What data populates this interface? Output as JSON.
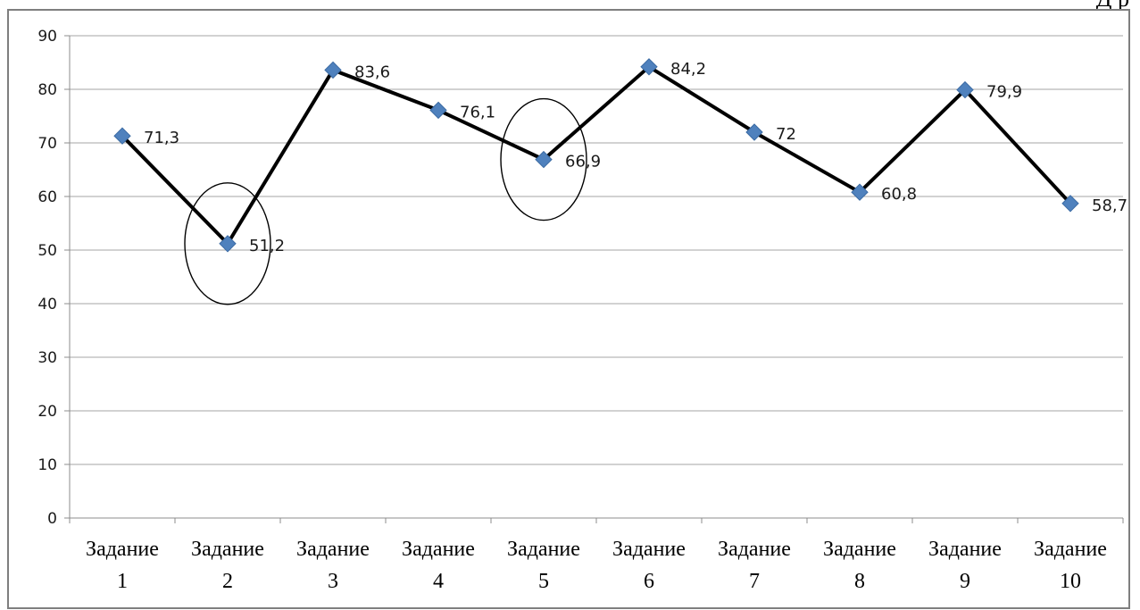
{
  "page": {
    "header_fragment": "Д    р"
  },
  "chart_data": {
    "type": "line",
    "title": "",
    "xlabel": "",
    "ylabel": "",
    "categories": [
      [
        "Задание",
        "1"
      ],
      [
        "Задание",
        "2"
      ],
      [
        "Задание",
        "3"
      ],
      [
        "Задание",
        "4"
      ],
      [
        "Задание",
        "5"
      ],
      [
        "Задание",
        "6"
      ],
      [
        "Задание",
        "7"
      ],
      [
        "Задание",
        "8"
      ],
      [
        "Задание",
        "9"
      ],
      [
        "Задание",
        "10"
      ]
    ],
    "series": [
      {
        "values": [
          71.3,
          51.2,
          83.6,
          76.1,
          66.9,
          84.2,
          72,
          60.8,
          79.9,
          58.7
        ],
        "labels": [
          "71,3",
          "51,2",
          "83,6",
          "76,1",
          "66,9",
          "84,2",
          "72",
          "60,8",
          "79,9",
          "58,7"
        ],
        "line_color": "#000000",
        "marker_color": "#4f81bd",
        "marker": "diamond"
      }
    ],
    "ylim": [
      0,
      90
    ],
    "yticks": [
      0,
      10,
      20,
      30,
      40,
      50,
      60,
      70,
      80,
      90
    ],
    "grid": true,
    "gridline_color": "#a6a6a6",
    "legend": "none",
    "highlighted_points": [
      2,
      5
    ]
  }
}
